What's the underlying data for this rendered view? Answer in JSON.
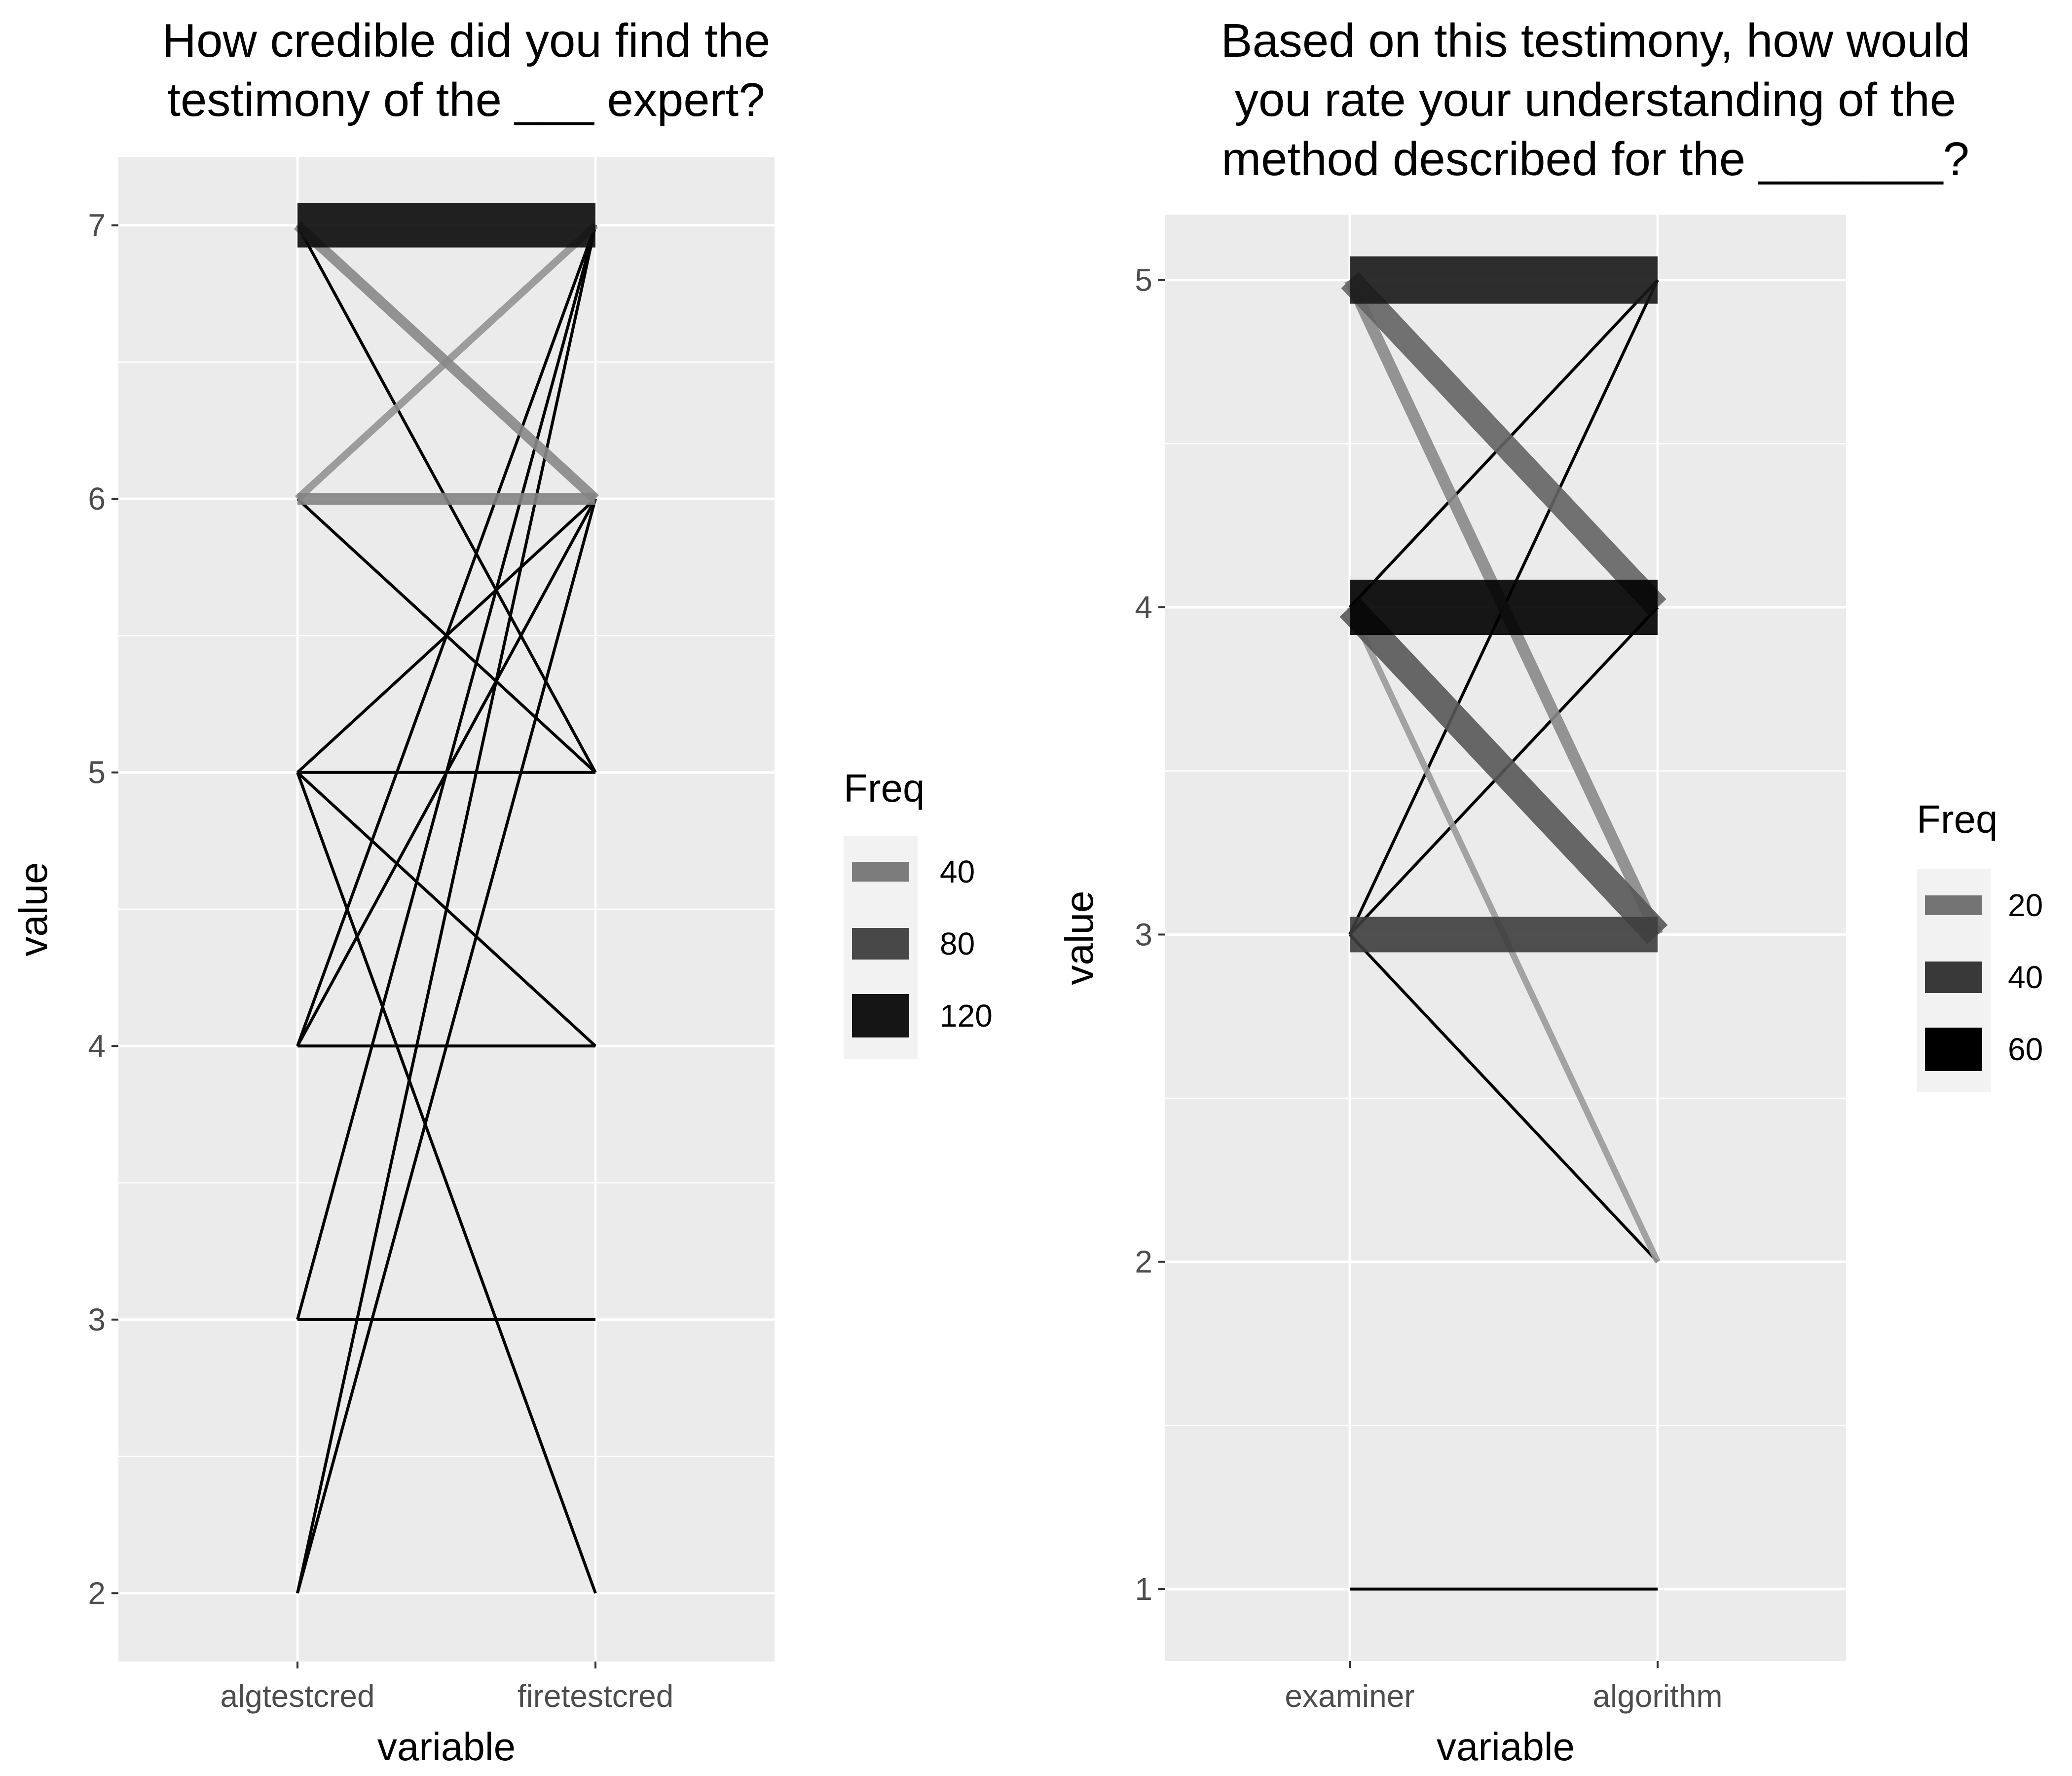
{
  "chart_data": [
    {
      "type": "parallel-coordinates",
      "title_lines": [
        "How credible did you find the",
        "testimony of the ___ expert?"
      ],
      "xlabel": "variable",
      "ylabel": "value",
      "categories": [
        "algtestcred",
        "firetestcred"
      ],
      "ylim": [
        1.75,
        7.25
      ],
      "yticks": [
        2,
        3,
        4,
        5,
        6,
        7
      ],
      "grid": true,
      "legend": {
        "title": "Freq",
        "position": "right",
        "entries": [
          {
            "label": "40",
            "value": 40
          },
          {
            "label": "80",
            "value": 80
          },
          {
            "label": "120",
            "value": 120
          }
        ]
      },
      "freq_max": 160,
      "links": [
        {
          "from": 7,
          "to": 7,
          "freq": 150
        },
        {
          "from": 6,
          "to": 6,
          "freq": 40
        },
        {
          "from": 7,
          "to": 6,
          "freq": 35
        },
        {
          "from": 6,
          "to": 7,
          "freq": 25
        },
        {
          "from": 7,
          "to": 5,
          "freq": 2
        },
        {
          "from": 6,
          "to": 5,
          "freq": 2
        },
        {
          "from": 5,
          "to": 6,
          "freq": 2
        },
        {
          "from": 5,
          "to": 5,
          "freq": 2
        },
        {
          "from": 5,
          "to": 4,
          "freq": 2
        },
        {
          "from": 4,
          "to": 4,
          "freq": 2
        },
        {
          "from": 4,
          "to": 6,
          "freq": 2
        },
        {
          "from": 5,
          "to": 2,
          "freq": 1
        },
        {
          "from": 3,
          "to": 3,
          "freq": 1
        },
        {
          "from": 2,
          "to": 7,
          "freq": 1
        },
        {
          "from": 3,
          "to": 7,
          "freq": 1
        },
        {
          "from": 2,
          "to": 6,
          "freq": 1
        },
        {
          "from": 4,
          "to": 7,
          "freq": 1
        }
      ]
    },
    {
      "type": "parallel-coordinates",
      "title_lines": [
        "Based on this testimony, how would",
        "you rate your understanding of the",
        "method described for the _______?"
      ],
      "xlabel": "variable",
      "ylabel": "value",
      "categories": [
        "examiner",
        "algorithm"
      ],
      "ylim": [
        0.78,
        5.2
      ],
      "yticks": [
        1,
        2,
        3,
        4,
        5
      ],
      "grid": true,
      "legend": {
        "title": "Freq",
        "position": "right",
        "entries": [
          {
            "label": "20",
            "value": 20
          },
          {
            "label": "40",
            "value": 40
          },
          {
            "label": "60",
            "value": 60
          }
        ]
      },
      "freq_max": 70,
      "links": [
        {
          "from": 4,
          "to": 4,
          "freq": 70
        },
        {
          "from": 5,
          "to": 5,
          "freq": 60
        },
        {
          "from": 3,
          "to": 3,
          "freq": 45
        },
        {
          "from": 4,
          "to": 3,
          "freq": 35
        },
        {
          "from": 5,
          "to": 4,
          "freq": 30
        },
        {
          "from": 5,
          "to": 3,
          "freq": 15
        },
        {
          "from": 4,
          "to": 2,
          "freq": 8
        },
        {
          "from": 4,
          "to": 5,
          "freq": 2
        },
        {
          "from": 3,
          "to": 5,
          "freq": 2
        },
        {
          "from": 3,
          "to": 4,
          "freq": 2
        },
        {
          "from": 3,
          "to": 2,
          "freq": 1
        },
        {
          "from": 1,
          "to": 1,
          "freq": 1
        }
      ]
    }
  ]
}
